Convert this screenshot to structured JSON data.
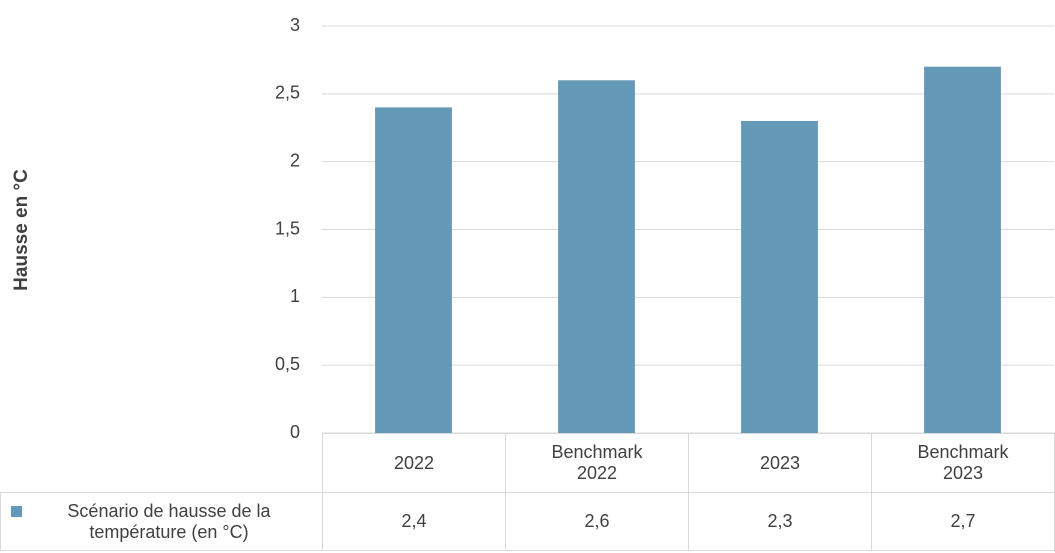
{
  "chart_data": {
    "type": "bar",
    "y_label": "Hausse en °C",
    "categories": [
      "2022",
      "Benchmark 2022",
      "2023",
      "Benchmark 2023"
    ],
    "series": [
      {
        "name": "Scénario de hausse de la température (en °C)",
        "color": "#6599b8",
        "values": [
          2.4,
          2.6,
          2.3,
          2.7
        ],
        "value_labels": [
          "2,4",
          "2,6",
          "2,3",
          "2,7"
        ]
      }
    ],
    "ylim": [
      0,
      3
    ],
    "yticks": [
      0,
      {
        "value": 0.5,
        "label": "0,5"
      },
      1,
      {
        "value": 1.5,
        "label": "1,5"
      },
      2,
      {
        "value": 2.5,
        "label": "2,5"
      },
      3
    ],
    "grid": true
  }
}
